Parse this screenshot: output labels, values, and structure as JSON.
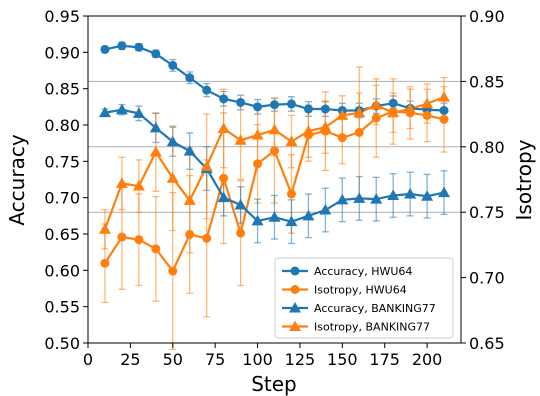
{
  "chart_data": {
    "type": "line",
    "xlabel": "Step",
    "ylabel_left": "Accuracy",
    "ylabel_right": "Isotropy",
    "xlim": [
      0,
      220
    ],
    "ylim_left": [
      0.5,
      0.95
    ],
    "ylim_right": [
      0.65,
      0.9
    ],
    "x_ticks": [
      0,
      25,
      50,
      75,
      100,
      125,
      150,
      175,
      200
    ],
    "y_left_ticks": [
      0.5,
      0.55,
      0.6,
      0.65,
      0.7,
      0.75,
      0.8,
      0.85,
      0.9,
      0.95
    ],
    "y_right_ticks": [
      0.65,
      0.7,
      0.75,
      0.8,
      0.85,
      0.9
    ],
    "grid": "horizontal lines at left-axis 0.68, 0.77, 0.86",
    "legend_position": "lower-right",
    "x": [
      10,
      20,
      30,
      40,
      50,
      60,
      70,
      80,
      90,
      100,
      110,
      120,
      130,
      140,
      150,
      160,
      170,
      180,
      190,
      200,
      210
    ],
    "series": [
      {
        "name": "Accuracy, HWU64",
        "axis": "left",
        "color": "#1f77b4",
        "marker": "circle",
        "values": [
          0.904,
          0.909,
          0.907,
          0.898,
          0.882,
          0.865,
          0.848,
          0.836,
          0.831,
          0.825,
          0.828,
          0.829,
          0.822,
          0.822,
          0.82,
          0.82,
          0.826,
          0.83,
          0.823,
          0.821,
          0.82
        ],
        "errors": [
          0.004,
          0.005,
          0.005,
          0.005,
          0.008,
          0.008,
          0.009,
          0.01,
          0.01,
          0.01,
          0.009,
          0.01,
          0.01,
          0.01,
          0.01,
          0.01,
          0.01,
          0.01,
          0.01,
          0.01,
          0.01
        ]
      },
      {
        "name": "Isotropy,  HWU64",
        "axis": "right",
        "color": "#ff7f0e",
        "marker": "circle",
        "values": [
          0.711,
          0.731,
          0.729,
          0.722,
          0.705,
          0.733,
          0.73,
          0.776,
          0.734,
          0.787,
          0.797,
          0.764,
          0.809,
          0.812,
          0.807,
          0.811,
          0.822,
          0.827,
          0.826,
          0.824,
          0.821
        ],
        "errors": [
          0.03,
          0.04,
          0.035,
          0.04,
          0.06,
          0.045,
          0.06,
          0.05,
          0.04,
          0.03,
          0.04,
          0.03,
          0.02,
          0.03,
          0.02,
          0.05,
          0.03,
          0.025,
          0.02,
          0.02,
          0.025
        ]
      },
      {
        "name": "Accuracy, BANKING77",
        "axis": "left",
        "color": "#1f77b4",
        "marker": "triangle",
        "values": [
          0.817,
          0.821,
          0.816,
          0.796,
          0.777,
          0.764,
          0.74,
          0.7,
          0.69,
          0.668,
          0.673,
          0.667,
          0.675,
          0.683,
          0.697,
          0.699,
          0.698,
          0.703,
          0.705,
          0.702,
          0.707
        ],
        "errors": [
          0.005,
          0.007,
          0.01,
          0.02,
          0.02,
          0.025,
          0.03,
          0.025,
          0.025,
          0.03,
          0.03,
          0.03,
          0.03,
          0.03,
          0.03,
          0.03,
          0.03,
          0.03,
          0.03,
          0.03,
          0.03
        ]
      },
      {
        "name": "Isotropy,  BANKING77",
        "axis": "right",
        "color": "#ff7f0e",
        "marker": "triangle",
        "values": [
          0.737,
          0.772,
          0.77,
          0.796,
          0.776,
          0.759,
          0.785,
          0.814,
          0.805,
          0.809,
          0.813,
          0.804,
          0.812,
          0.815,
          0.824,
          0.826,
          0.832,
          0.826,
          0.829,
          0.833,
          0.838
        ],
        "errors": [
          0.015,
          0.02,
          0.02,
          0.03,
          0.04,
          0.04,
          0.04,
          0.03,
          0.03,
          0.02,
          0.02,
          0.02,
          0.02,
          0.02,
          0.015,
          0.015,
          0.015,
          0.015,
          0.015,
          0.015,
          0.015
        ]
      }
    ]
  }
}
